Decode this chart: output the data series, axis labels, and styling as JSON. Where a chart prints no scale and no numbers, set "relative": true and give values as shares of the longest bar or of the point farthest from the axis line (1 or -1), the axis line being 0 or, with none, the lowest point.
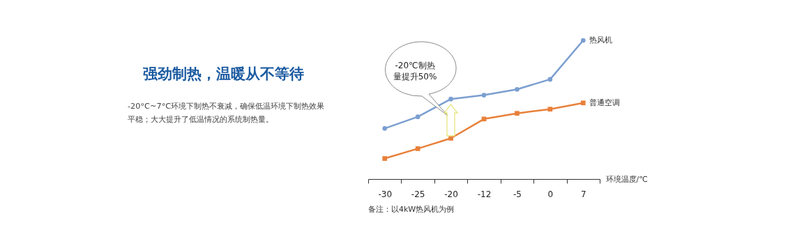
{
  "chart_data": {
    "type": "line",
    "title": "强劲制热，温暖从不等待",
    "subtitle": "-20°C~7°C环境下制热不衰减，确保低温环境下制热效果平稳；大大提升了低温情况的系统制热量。",
    "xlabel": "环境温度/℃",
    "categories": [
      "-30",
      "-25",
      "-20",
      "-12",
      "-5",
      "0",
      "7"
    ],
    "relative": true,
    "legend": false,
    "grid": false,
    "series": [
      {
        "name": "热风机",
        "color": "#7b9fd0",
        "marker": "circle",
        "values": [
          0.365,
          0.449,
          0.577,
          0.605,
          0.647,
          0.719,
          1
        ]
      },
      {
        "name": "普通空调",
        "color": "#e8803a",
        "marker": "square",
        "values": [
          0.148,
          0.219,
          0.294,
          0.433,
          0.474,
          0.504,
          0.549
        ]
      }
    ],
    "annotations": [
      "-20℃制热量提升50%",
      "备注：以4kW热风机为例"
    ]
  }
}
